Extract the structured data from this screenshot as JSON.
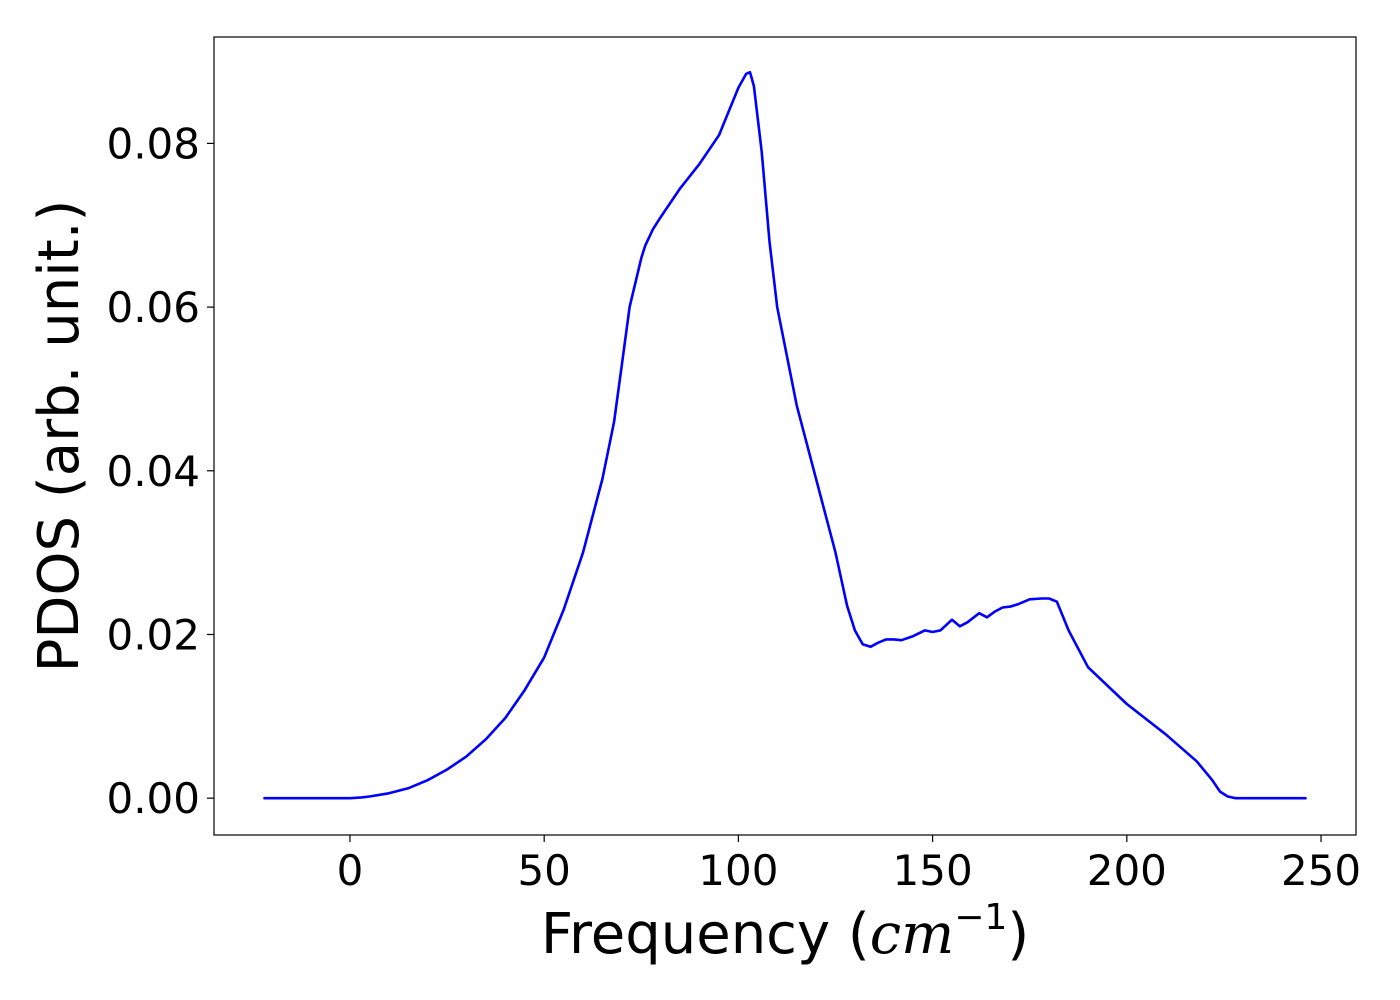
{
  "chart_data": {
    "type": "line",
    "title": "",
    "xlabel_prefix": "Frequency (",
    "xlabel_unit": "cm",
    "xlabel_exponent": "−1",
    "xlabel_suffix": ")",
    "ylabel": "PDOS (arb. unit.)",
    "xlim": [
      -35,
      259
    ],
    "ylim": [
      -0.0045,
      0.093
    ],
    "x_ticks": [
      0,
      50,
      100,
      150,
      200,
      250
    ],
    "x_tick_labels": [
      "0",
      "50",
      "100",
      "150",
      "200",
      "250"
    ],
    "y_ticks": [
      0.0,
      0.02,
      0.04,
      0.06,
      0.08
    ],
    "y_tick_labels": [
      "0.00",
      "0.02",
      "0.04",
      "0.06",
      "0.08"
    ],
    "grid": false,
    "legend": "none",
    "series": [
      {
        "color": "#0000ff",
        "x": [
          -22,
          0,
          3,
          5,
          10,
          15,
          20,
          25,
          30,
          35,
          40,
          45,
          50,
          55,
          60,
          65,
          68,
          70,
          72,
          74,
          75,
          76,
          78,
          80,
          85,
          90,
          95,
          100,
          102,
          103,
          104,
          106,
          108,
          110,
          115,
          120,
          125,
          128,
          130,
          132,
          134,
          136,
          138,
          140,
          142,
          145,
          148,
          150,
          152,
          155,
          157,
          159,
          162,
          164,
          166,
          168,
          170,
          172,
          175,
          178,
          180,
          182,
          185,
          190,
          200,
          210,
          218,
          222,
          224,
          226,
          228,
          230,
          240,
          246
        ],
        "y": [
          0,
          0,
          0.0001,
          0.0002,
          0.0006,
          0.0012,
          0.0022,
          0.0035,
          0.0051,
          0.0072,
          0.0098,
          0.0132,
          0.0172,
          0.023,
          0.03,
          0.039,
          0.046,
          0.053,
          0.06,
          0.064,
          0.066,
          0.0675,
          0.0695,
          0.071,
          0.0745,
          0.0775,
          0.081,
          0.0868,
          0.0885,
          0.0887,
          0.087,
          0.079,
          0.068,
          0.06,
          0.048,
          0.039,
          0.03,
          0.0235,
          0.0205,
          0.0188,
          0.0185,
          0.019,
          0.0194,
          0.0194,
          0.0193,
          0.0198,
          0.0205,
          0.0203,
          0.0205,
          0.0218,
          0.021,
          0.0215,
          0.0226,
          0.0221,
          0.0228,
          0.0233,
          0.0234,
          0.0237,
          0.0243,
          0.0244,
          0.0244,
          0.024,
          0.0205,
          0.016,
          0.0115,
          0.0078,
          0.0045,
          0.0022,
          0.0008,
          0.0002,
          0,
          0,
          0,
          0
        ]
      }
    ]
  }
}
